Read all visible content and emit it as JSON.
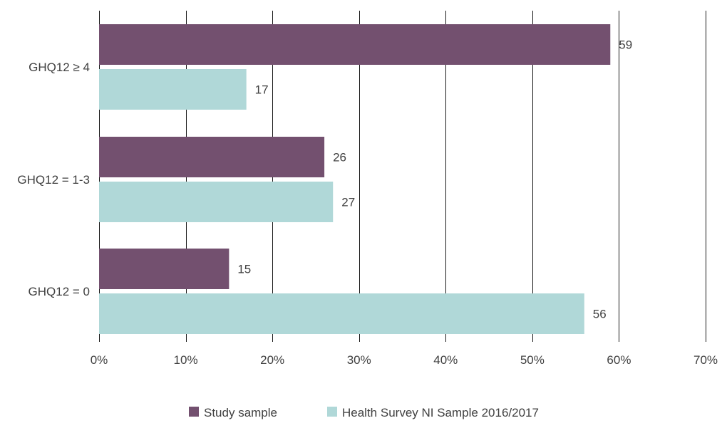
{
  "chart_data": {
    "type": "bar",
    "orientation": "horizontal",
    "categories": [
      "GHQ12 ≥ 4",
      "GHQ12 = 1-3",
      "GHQ12 = 0"
    ],
    "series": [
      {
        "name": "Study sample",
        "values": [
          59,
          26,
          15
        ],
        "color": "#73506f"
      },
      {
        "name": "Health Survey NI Sample 2016/2017",
        "values": [
          17,
          27,
          56
        ],
        "color": "#b0d8d8"
      }
    ],
    "data_labels": [
      [
        "59",
        "26",
        "15"
      ],
      [
        "17",
        "27",
        "56"
      ]
    ],
    "xlim": [
      0,
      70
    ],
    "x_ticks": [
      0,
      10,
      20,
      30,
      40,
      50,
      60,
      70
    ],
    "x_tick_labels": [
      "0%",
      "10%",
      "20%",
      "30%",
      "40%",
      "50%",
      "60%",
      "70%"
    ],
    "grid": true,
    "legend_position": "bottom-center",
    "title": "",
    "xlabel": "",
    "ylabel": ""
  }
}
